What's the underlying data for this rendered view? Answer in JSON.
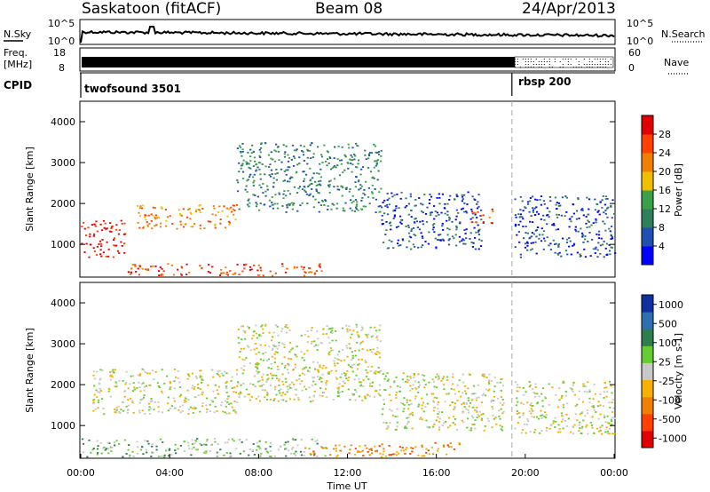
{
  "header": {
    "station": "Saskatoon (fitACF)",
    "beam": "Beam 08",
    "date": "24/Apr/2013"
  },
  "side_labels": {
    "nsky": "N.Sky",
    "freq_line1": "Freq.",
    "freq_line2": "[MHz]",
    "cpid": "CPID",
    "nsearch": "N.Search",
    "nave": "Nave"
  },
  "top_panels": {
    "noise_yticks_left": [
      "10^5",
      "10^0"
    ],
    "noise_yticks_right": [
      "10^5",
      "10^0"
    ],
    "freq_yticks_left": [
      "18",
      "8"
    ],
    "freq_yticks_right": [
      "60",
      "0"
    ],
    "cpid_segments": [
      {
        "label": "twofsound 3501",
        "start_hour": 0
      },
      {
        "label": "rbsp 200",
        "start_hour": 19.4
      }
    ]
  },
  "colors": {
    "power": [
      "#0000ff",
      "#1f4fb0",
      "#2f7f5a",
      "#3aa04a",
      "#f0c000",
      "#f08000",
      "#ff4000",
      "#e00000"
    ],
    "velocity": [
      "#e00000",
      "#ff4000",
      "#f08000",
      "#f5b000",
      "#c8c8c8",
      "#66cc33",
      "#2e7d4f",
      "#2f6fb0",
      "#1030a0"
    ]
  },
  "chart_data": [
    {
      "type": "heatmap",
      "name_label": "Power",
      "ylabel": "Slant Range [km]",
      "xlabel": "",
      "ylim": [
        200,
        4500
      ],
      "xlim_hours": [
        0,
        24
      ],
      "yticks": [
        "1000",
        "2000",
        "3000",
        "4000"
      ],
      "colorbar_label": "Power [dB]",
      "colorbar_ticks": [
        "4",
        "8",
        "12",
        "16",
        "20",
        "24",
        "28"
      ],
      "scatter_bands": [
        {
          "t0": 0,
          "t1": 2,
          "r0": 700,
          "r1": 1600,
          "level": 7
        },
        {
          "t0": 2,
          "t1": 11,
          "r0": 250,
          "r1": 550,
          "level": 6
        },
        {
          "t0": 2.5,
          "t1": 7,
          "r0": 1400,
          "r1": 2000,
          "level": 5
        },
        {
          "t0": 7,
          "t1": 13.5,
          "r0": 1800,
          "r1": 3500,
          "level": 2
        },
        {
          "t0": 13.5,
          "t1": 18,
          "r0": 900,
          "r1": 2300,
          "level": 1
        },
        {
          "t0": 17.5,
          "t1": 18.5,
          "r0": 1500,
          "r1": 1900,
          "level": 6
        },
        {
          "t0": 19.5,
          "t1": 24,
          "r0": 700,
          "r1": 2200,
          "level": 1
        }
      ]
    },
    {
      "type": "heatmap",
      "name_label": "Velocity",
      "ylabel": "Slant Range [km]",
      "xlabel": "Time UT",
      "ylim": [
        200,
        4500
      ],
      "xlim_hours": [
        0,
        24
      ],
      "yticks": [
        "1000",
        "2000",
        "3000",
        "4000"
      ],
      "xticks": [
        "00:00",
        "04:00",
        "08:00",
        "12:00",
        "16:00",
        "20:00",
        "00:00"
      ],
      "colorbar_label": "Velocity [m s-1]",
      "colorbar_ticks": [
        "1000",
        "500",
        "100",
        "25",
        "-25",
        "-100",
        "-500",
        "-1000"
      ],
      "scatter_bands": [
        {
          "t0": 0,
          "t1": 11,
          "r0": 250,
          "r1": 700,
          "level": 5
        },
        {
          "t0": 0.5,
          "t1": 7,
          "r0": 1300,
          "r1": 2400,
          "level": 4
        },
        {
          "t0": 7,
          "t1": 13.5,
          "r0": 1600,
          "r1": 3500,
          "level": 4
        },
        {
          "t0": 10,
          "t1": 17,
          "r0": 250,
          "r1": 600,
          "level": 2
        },
        {
          "t0": 13.5,
          "t1": 19,
          "r0": 900,
          "r1": 2300,
          "level": 4
        },
        {
          "t0": 19.5,
          "t1": 24,
          "r0": 800,
          "r1": 2100,
          "level": 4
        }
      ]
    }
  ]
}
